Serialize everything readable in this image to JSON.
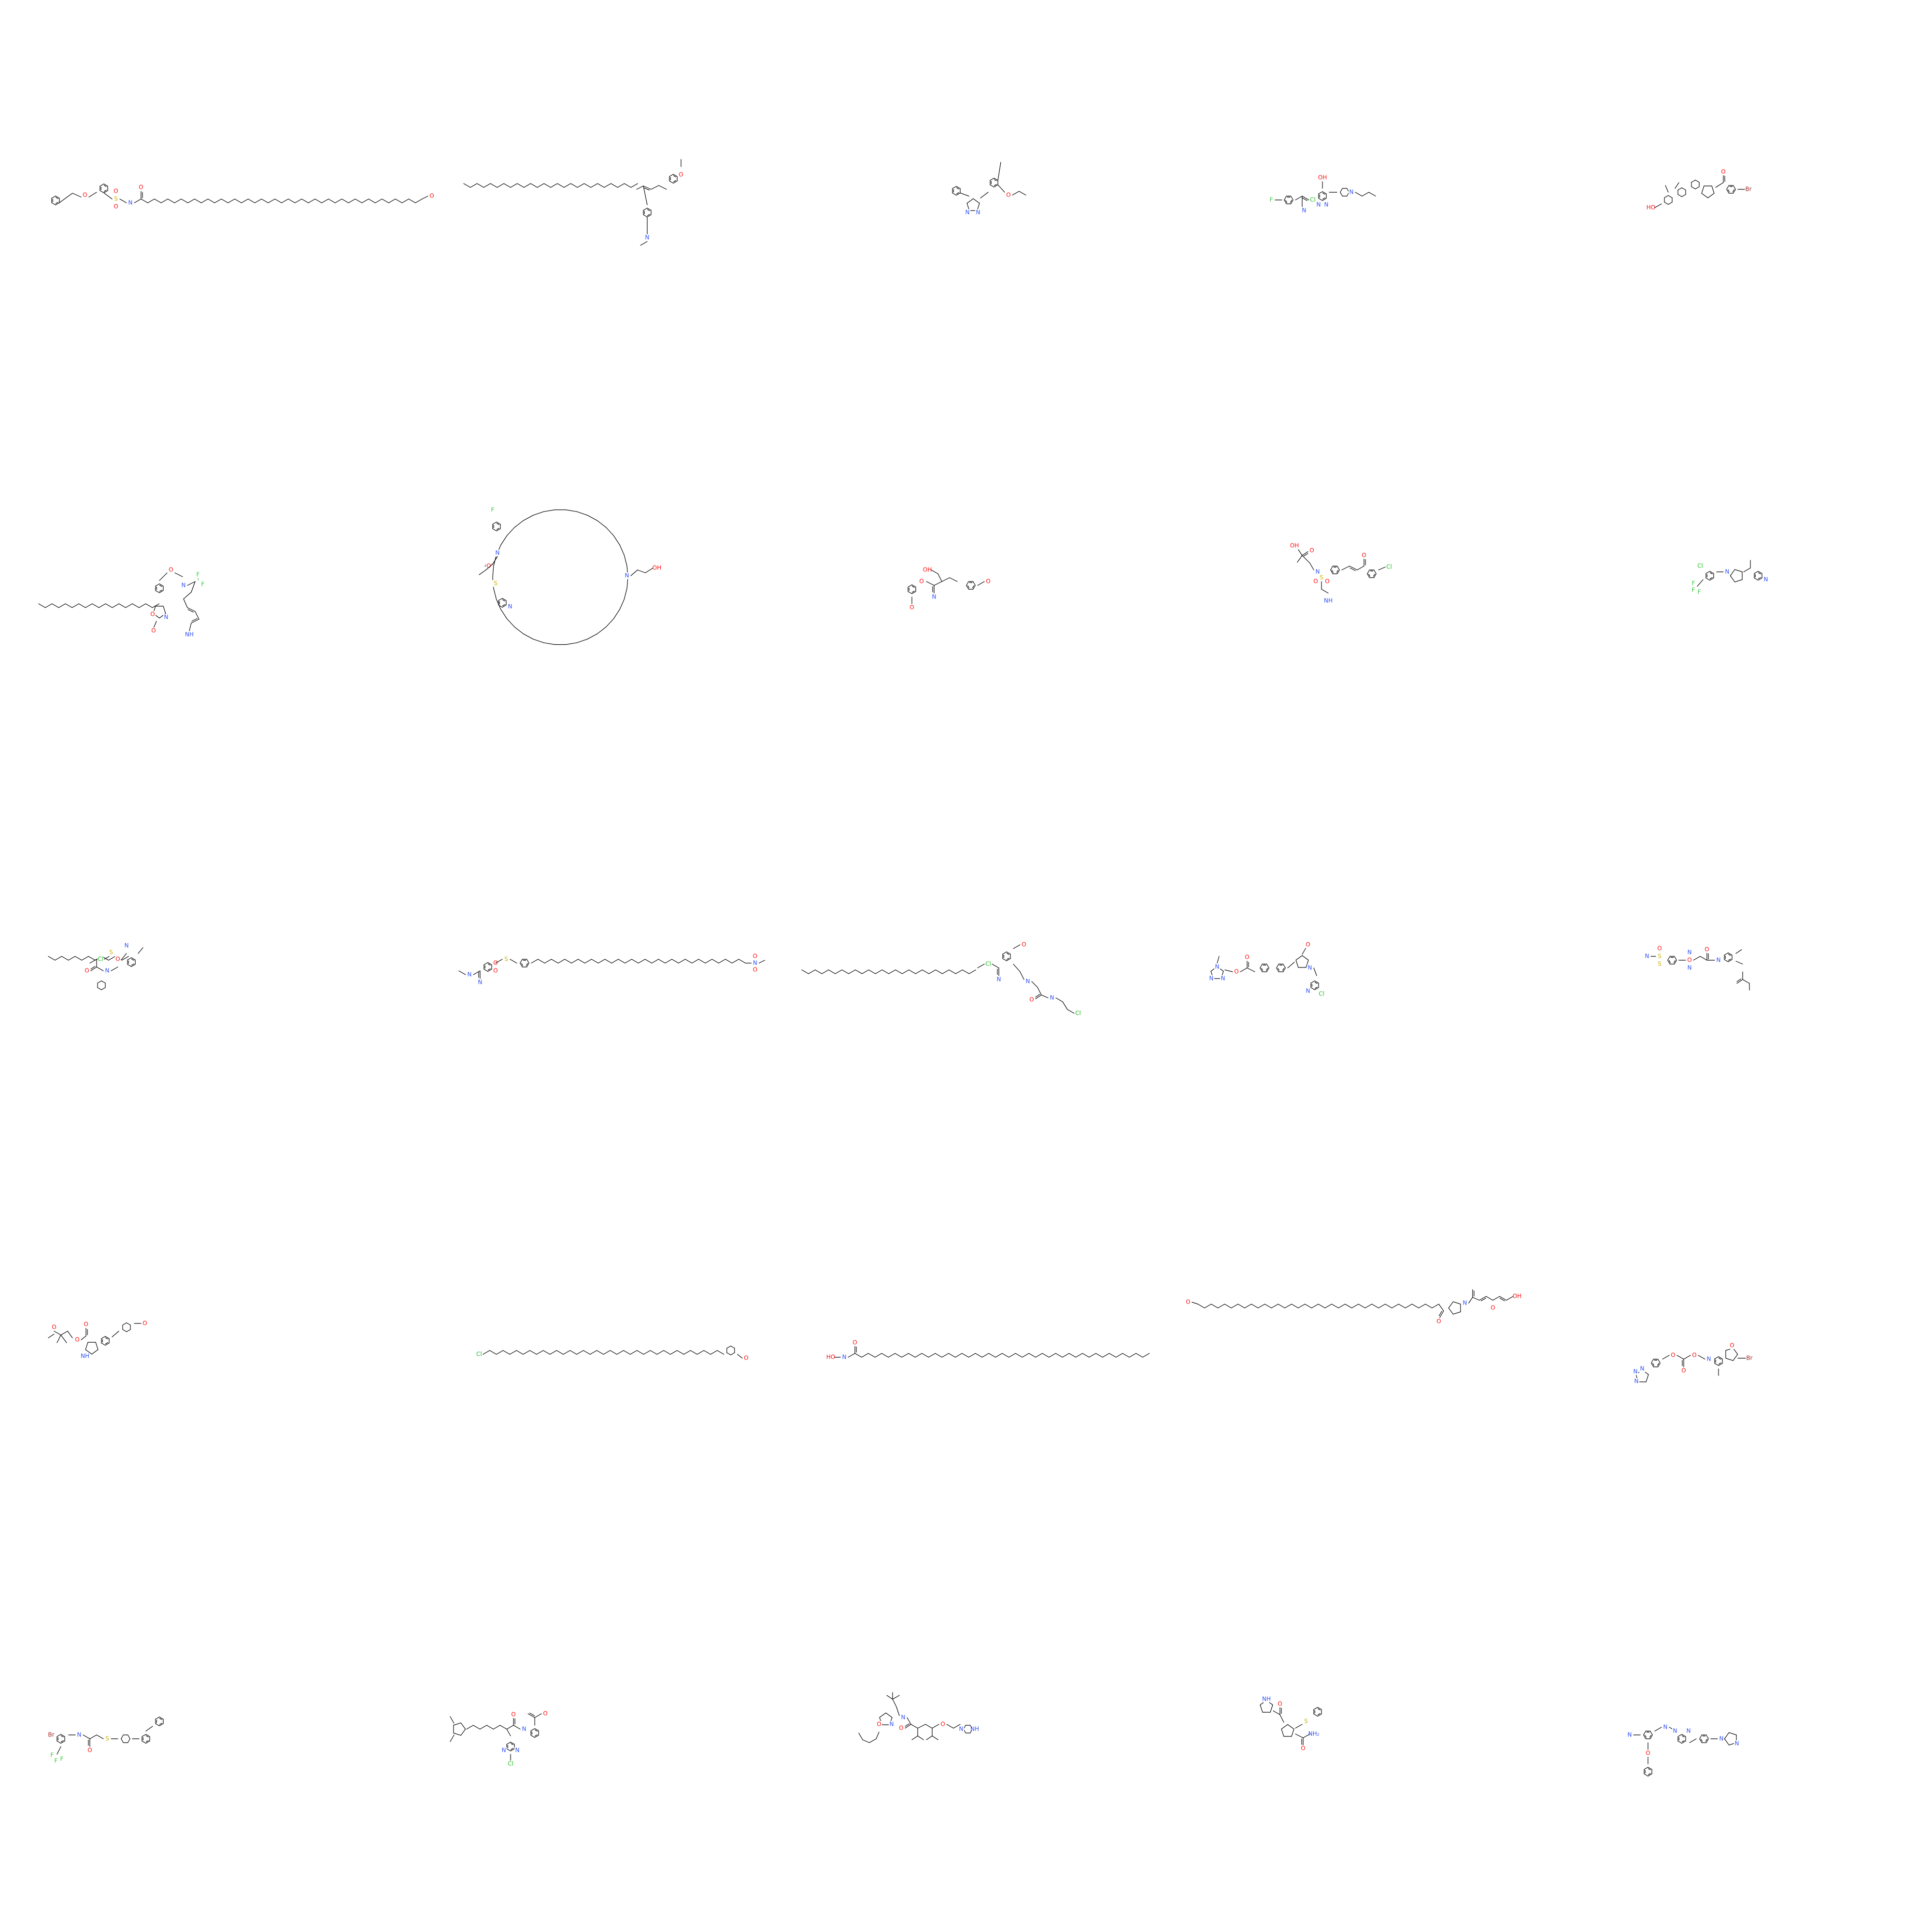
{
  "colors": {
    "bond": "#000000",
    "O": "#ff0d0d",
    "N": "#3050f8",
    "S": "#c8b400",
    "F": "#33cc33",
    "Cl": "#1fbf1f",
    "Br": "#a62929",
    "background": "#ffffff"
  },
  "molecules": [
    {
      "id": "mol-1",
      "atom_labels": [
        {
          "text": "O",
          "element": "O"
        },
        {
          "text": "S",
          "element": "S"
        },
        {
          "text": "O",
          "element": "O"
        },
        {
          "text": "O",
          "element": "O"
        },
        {
          "text": "N",
          "element": "N"
        },
        {
          "text": "O",
          "element": "O"
        },
        {
          "text": "O",
          "element": "O"
        }
      ]
    },
    {
      "id": "mol-2",
      "atom_labels": [
        {
          "text": "N",
          "element": "N"
        },
        {
          "text": "O",
          "element": "O"
        }
      ]
    },
    {
      "id": "mol-3",
      "atom_labels": [
        {
          "text": "N",
          "element": "N"
        },
        {
          "text": "N",
          "element": "N"
        },
        {
          "text": "O",
          "element": "O"
        }
      ]
    },
    {
      "id": "mol-4",
      "atom_labels": [
        {
          "text": "F",
          "element": "F"
        },
        {
          "text": "Cl",
          "element": "Cl"
        },
        {
          "text": "N",
          "element": "N"
        },
        {
          "text": "OH",
          "element": "O"
        },
        {
          "text": "N",
          "element": "N"
        },
        {
          "text": "N",
          "element": "N"
        },
        {
          "text": "N",
          "element": "N"
        }
      ]
    },
    {
      "id": "mol-5",
      "atom_labels": [
        {
          "text": "HO",
          "element": "O"
        },
        {
          "text": "O",
          "element": "O"
        },
        {
          "text": "Br",
          "element": "Br"
        }
      ]
    },
    {
      "id": "mol-6",
      "atom_labels": [
        {
          "text": "O",
          "element": "O"
        },
        {
          "text": "N",
          "element": "N"
        },
        {
          "text": "F",
          "element": "F"
        },
        {
          "text": "F",
          "element": "F"
        },
        {
          "text": "F",
          "element": "F"
        },
        {
          "text": "O",
          "element": "O"
        },
        {
          "text": "N",
          "element": "N"
        },
        {
          "text": "O",
          "element": "O"
        },
        {
          "text": "NH",
          "element": "N"
        }
      ]
    },
    {
      "id": "mol-7",
      "atom_labels": [
        {
          "text": "F",
          "element": "F"
        },
        {
          "text": "N",
          "element": "N"
        },
        {
          "text": "O",
          "element": "O"
        },
        {
          "text": "S",
          "element": "S"
        },
        {
          "text": "N",
          "element": "N"
        },
        {
          "text": "N",
          "element": "N"
        },
        {
          "text": "OH",
          "element": "O"
        }
      ]
    },
    {
      "id": "mol-8",
      "atom_labels": [
        {
          "text": "OH",
          "element": "O"
        },
        {
          "text": "N",
          "element": "N"
        },
        {
          "text": "O",
          "element": "O"
        },
        {
          "text": "O",
          "element": "O"
        },
        {
          "text": "O",
          "element": "O"
        }
      ]
    },
    {
      "id": "mol-9",
      "atom_labels": [
        {
          "text": "OH",
          "element": "O"
        },
        {
          "text": "O",
          "element": "O"
        },
        {
          "text": "N",
          "element": "N"
        },
        {
          "text": "S",
          "element": "S"
        },
        {
          "text": "O",
          "element": "O"
        },
        {
          "text": "O",
          "element": "O"
        },
        {
          "text": "O",
          "element": "O"
        },
        {
          "text": "Cl",
          "element": "Cl"
        },
        {
          "text": "NH",
          "element": "N"
        }
      ]
    },
    {
      "id": "mol-10",
      "atom_labels": [
        {
          "text": "Cl",
          "element": "Cl"
        },
        {
          "text": "F",
          "element": "F"
        },
        {
          "text": "F",
          "element": "F"
        },
        {
          "text": "F",
          "element": "F"
        },
        {
          "text": "N",
          "element": "N"
        },
        {
          "text": "N",
          "element": "N"
        }
      ]
    },
    {
      "id": "mol-11",
      "atom_labels": [
        {
          "text": "Cl",
          "element": "Cl"
        },
        {
          "text": "S",
          "element": "S"
        },
        {
          "text": "O",
          "element": "O"
        },
        {
          "text": "N",
          "element": "N"
        },
        {
          "text": "O",
          "element": "O"
        },
        {
          "text": "N",
          "element": "N"
        }
      ]
    },
    {
      "id": "mol-12",
      "atom_labels": [
        {
          "text": "N",
          "element": "N"
        },
        {
          "text": "N",
          "element": "N"
        },
        {
          "text": "O",
          "element": "O"
        },
        {
          "text": "O",
          "element": "O"
        },
        {
          "text": "S",
          "element": "S"
        },
        {
          "text": "N",
          "element": "N"
        },
        {
          "text": "O",
          "element": "O"
        },
        {
          "text": "O",
          "element": "O"
        }
      ]
    },
    {
      "id": "mol-13",
      "atom_labels": [
        {
          "text": "Cl",
          "element": "Cl"
        },
        {
          "text": "N",
          "element": "N"
        },
        {
          "text": "O",
          "element": "O"
        },
        {
          "text": "N",
          "element": "N"
        },
        {
          "text": "O",
          "element": "O"
        },
        {
          "text": "N",
          "element": "N"
        },
        {
          "text": "Cl",
          "element": "Cl"
        }
      ]
    },
    {
      "id": "mol-14",
      "atom_labels": [
        {
          "text": "N",
          "element": "N"
        },
        {
          "text": "N",
          "element": "N"
        },
        {
          "text": "N",
          "element": "N"
        },
        {
          "text": "O",
          "element": "O"
        },
        {
          "text": "O",
          "element": "O"
        },
        {
          "text": "O",
          "element": "O"
        },
        {
          "text": "N",
          "element": "N"
        },
        {
          "text": "N",
          "element": "N"
        },
        {
          "text": "Cl",
          "element": "Cl"
        }
      ]
    },
    {
      "id": "mol-15",
      "atom_labels": [
        {
          "text": "N",
          "element": "N"
        },
        {
          "text": "S",
          "element": "S"
        },
        {
          "text": "O",
          "element": "O"
        },
        {
          "text": "S",
          "element": "S"
        },
        {
          "text": "O",
          "element": "O"
        },
        {
          "text": "N",
          "element": "N"
        },
        {
          "text": "N",
          "element": "N"
        },
        {
          "text": "O",
          "element": "O"
        },
        {
          "text": "N",
          "element": "N"
        }
      ]
    },
    {
      "id": "mol-16",
      "atom_labels": [
        {
          "text": "O",
          "element": "O"
        },
        {
          "text": "O",
          "element": "O"
        },
        {
          "text": "O",
          "element": "O"
        },
        {
          "text": "NH",
          "element": "N"
        },
        {
          "text": "O",
          "element": "O"
        }
      ]
    },
    {
      "id": "mol-17",
      "atom_labels": [
        {
          "text": "Cl",
          "element": "Cl"
        },
        {
          "text": "O",
          "element": "O"
        }
      ]
    },
    {
      "id": "mol-18",
      "atom_labels": [
        {
          "text": "HO",
          "element": "O"
        },
        {
          "text": "N",
          "element": "N"
        },
        {
          "text": "O",
          "element": "O"
        }
      ]
    },
    {
      "id": "mol-19",
      "atom_labels": [
        {
          "text": "O",
          "element": "O"
        },
        {
          "text": "O",
          "element": "O"
        },
        {
          "text": "N",
          "element": "N"
        },
        {
          "text": "O",
          "element": "O"
        },
        {
          "text": "OH",
          "element": "O"
        },
        {
          "text": "F",
          "element": "F"
        }
      ]
    },
    {
      "id": "mol-20",
      "atom_labels": [
        {
          "text": "N",
          "element": "N"
        },
        {
          "text": "N",
          "element": "N"
        },
        {
          "text": "N",
          "element": "N"
        },
        {
          "text": "O",
          "element": "O"
        },
        {
          "text": "O",
          "element": "O"
        },
        {
          "text": "O",
          "element": "O"
        },
        {
          "text": "N",
          "element": "N"
        },
        {
          "text": "O",
          "element": "O"
        },
        {
          "text": "Br",
          "element": "Br"
        }
      ]
    },
    {
      "id": "mol-21",
      "atom_labels": [
        {
          "text": "Br",
          "element": "Br"
        },
        {
          "text": "N",
          "element": "N"
        },
        {
          "text": "O",
          "element": "O"
        },
        {
          "text": "S",
          "element": "S"
        },
        {
          "text": "F",
          "element": "F"
        },
        {
          "text": "F",
          "element": "F"
        },
        {
          "text": "F",
          "element": "F"
        }
      ]
    },
    {
      "id": "mol-22",
      "atom_labels": [
        {
          "text": "N",
          "element": "N"
        },
        {
          "text": "N",
          "element": "N"
        },
        {
          "text": "Cl",
          "element": "Cl"
        },
        {
          "text": "O",
          "element": "O"
        },
        {
          "text": "N",
          "element": "N"
        },
        {
          "text": "O",
          "element": "O"
        },
        {
          "text": "OH",
          "element": "O"
        }
      ]
    },
    {
      "id": "mol-23",
      "atom_labels": [
        {
          "text": "O",
          "element": "O"
        },
        {
          "text": "N",
          "element": "N"
        },
        {
          "text": "N",
          "element": "N"
        },
        {
          "text": "O",
          "element": "O"
        },
        {
          "text": "O",
          "element": "O"
        },
        {
          "text": "N",
          "element": "N"
        },
        {
          "text": "NH",
          "element": "N"
        }
      ]
    },
    {
      "id": "mol-24",
      "atom_labels": [
        {
          "text": "NH",
          "element": "N"
        },
        {
          "text": "O",
          "element": "O"
        },
        {
          "text": "S",
          "element": "S"
        },
        {
          "text": "O",
          "element": "O"
        },
        {
          "text": "NH₂",
          "element": "N"
        }
      ]
    },
    {
      "id": "mol-25",
      "atom_labels": [
        {
          "text": "N",
          "element": "N"
        },
        {
          "text": "N",
          "element": "N"
        },
        {
          "text": "O",
          "element": "O"
        },
        {
          "text": "N",
          "element": "N"
        },
        {
          "text": "N",
          "element": "N"
        },
        {
          "text": "N",
          "element": "N"
        },
        {
          "text": "N",
          "element": "N"
        }
      ]
    }
  ]
}
